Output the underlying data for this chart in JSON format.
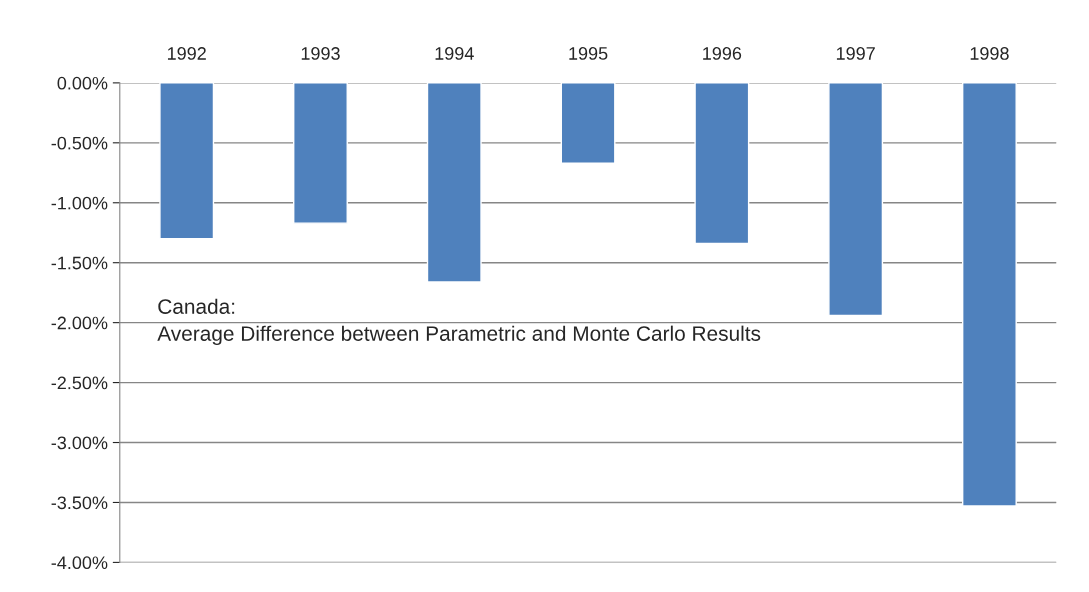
{
  "chart_data": {
    "type": "bar",
    "categories": [
      "1992",
      "1993",
      "1994",
      "1995",
      "1996",
      "1997",
      "1998"
    ],
    "values": [
      -1.3,
      -1.17,
      -1.66,
      -0.67,
      -1.34,
      -1.94,
      -3.53
    ],
    "color": "#4f81bd",
    "ylim": [
      -4.0,
      0.0
    ],
    "yticks": [
      {
        "value": 0,
        "label": "0.00%"
      },
      {
        "value": -0.5,
        "label": "-0.50%"
      },
      {
        "value": -1.0,
        "label": "-1.00%"
      },
      {
        "value": -1.5,
        "label": "-1.50%"
      },
      {
        "value": -2.0,
        "label": "-2.00%"
      },
      {
        "value": -2.5,
        "label": "-2.50%"
      },
      {
        "value": -3.0,
        "label": "-3.00%"
      },
      {
        "value": -3.5,
        "label": "-3.50%"
      },
      {
        "value": -4.0,
        "label": "-4.00%"
      }
    ],
    "grid": "y",
    "annotations": [
      "Canada:\nAverage Difference between Parametric and Monte Carlo Results"
    ]
  }
}
